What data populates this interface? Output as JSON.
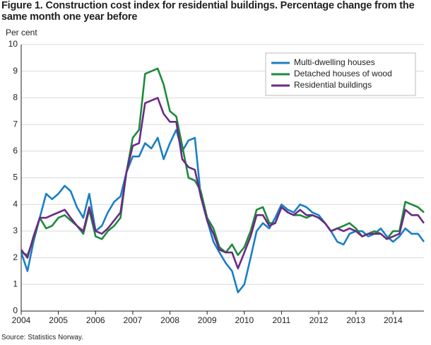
{
  "chart_data": {
    "type": "line",
    "title": "Figure 1. Construction cost index for residential buildings. Percentage change from the same month one year before",
    "y_label": "Per cent",
    "source": "Source: Statistics Norway.",
    "x": [
      2004,
      2004.17,
      2004.33,
      2004.5,
      2004.67,
      2004.83,
      2005,
      2005.17,
      2005.33,
      2005.5,
      2005.67,
      2005.83,
      2006,
      2006.17,
      2006.33,
      2006.5,
      2006.67,
      2006.83,
      2007,
      2007.17,
      2007.33,
      2007.5,
      2007.67,
      2007.83,
      2008,
      2008.17,
      2008.33,
      2008.5,
      2008.67,
      2008.83,
      2009,
      2009.17,
      2009.33,
      2009.5,
      2009.67,
      2009.83,
      2010,
      2010.17,
      2010.33,
      2010.5,
      2010.67,
      2010.83,
      2011,
      2011.17,
      2011.33,
      2011.5,
      2011.67,
      2011.83,
      2012,
      2012.17,
      2012.33,
      2012.5,
      2012.67,
      2012.83,
      2013,
      2013.17,
      2013.33,
      2013.5,
      2013.67,
      2013.83,
      2014,
      2014.17,
      2014.33,
      2014.5,
      2014.67,
      2014.83
    ],
    "series": [
      {
        "name": "Multi-dwelling houses",
        "color": "#1a7fc4",
        "values": [
          2.2,
          1.5,
          2.6,
          3.5,
          4.4,
          4.2,
          4.4,
          4.7,
          4.5,
          3.9,
          3.5,
          4.4,
          3.0,
          3.2,
          3.7,
          4.1,
          4.3,
          5.2,
          5.8,
          5.8,
          6.3,
          6.1,
          6.5,
          5.7,
          6.3,
          6.8,
          6.0,
          6.4,
          6.5,
          4.3,
          3.4,
          2.6,
          2.2,
          1.8,
          1.5,
          0.7,
          1.0,
          2.0,
          3.0,
          3.3,
          3.1,
          3.5,
          4.0,
          3.8,
          3.7,
          4.0,
          3.9,
          3.7,
          3.6,
          3.3,
          3.0,
          2.6,
          2.5,
          2.9,
          3.0,
          3.0,
          2.8,
          2.9,
          3.1,
          2.8,
          2.6,
          2.8,
          3.1,
          2.9,
          2.9,
          2.6
        ]
      },
      {
        "name": "Detached houses of wood",
        "color": "#1f8a3c",
        "values": [
          2.2,
          2.1,
          2.7,
          3.5,
          3.1,
          3.2,
          3.5,
          3.6,
          3.4,
          3.2,
          2.9,
          3.8,
          2.8,
          2.7,
          3.0,
          3.2,
          3.5,
          5.2,
          6.5,
          6.8,
          8.9,
          9.0,
          9.1,
          8.5,
          7.5,
          7.3,
          6.2,
          5.0,
          4.9,
          4.5,
          3.5,
          3.1,
          2.4,
          2.2,
          2.5,
          2.1,
          2.4,
          3.0,
          3.8,
          3.9,
          3.3,
          3.3,
          3.9,
          3.7,
          3.6,
          3.6,
          3.5,
          3.6,
          3.5,
          3.3,
          3.0,
          3.1,
          3.2,
          3.3,
          3.1,
          2.8,
          2.9,
          3.0,
          2.9,
          2.7,
          3.0,
          3.0,
          4.1,
          4.0,
          3.9,
          3.7
        ]
      },
      {
        "name": "Residential buildings",
        "color": "#6b2a86",
        "values": [
          2.3,
          2.0,
          2.8,
          3.5,
          3.5,
          3.6,
          3.7,
          3.8,
          3.5,
          3.2,
          3.0,
          3.9,
          3.0,
          2.9,
          3.1,
          3.4,
          3.7,
          5.2,
          6.2,
          6.3,
          7.8,
          7.9,
          8.0,
          7.4,
          7.1,
          7.1,
          5.7,
          5.4,
          5.3,
          4.3,
          3.4,
          2.9,
          2.3,
          2.2,
          2.2,
          1.6,
          2.2,
          2.8,
          3.6,
          3.6,
          3.2,
          3.3,
          3.9,
          3.7,
          3.6,
          3.8,
          3.6,
          3.6,
          3.5,
          3.3,
          3.0,
          3.1,
          3.0,
          3.1,
          3.0,
          2.8,
          2.9,
          2.9,
          2.9,
          2.7,
          2.8,
          2.9,
          3.8,
          3.6,
          3.6,
          3.3
        ]
      }
    ],
    "xlim": [
      2004,
      2014.83
    ],
    "xticks": [
      2004,
      2005,
      2006,
      2007,
      2008,
      2009,
      2010,
      2011,
      2012,
      2013,
      2014
    ],
    "ylim": [
      0,
      10
    ],
    "yticks": [
      0,
      1,
      2,
      3,
      4,
      5,
      6,
      7,
      8,
      9,
      10
    ],
    "grid": true,
    "legend": "upper right"
  }
}
